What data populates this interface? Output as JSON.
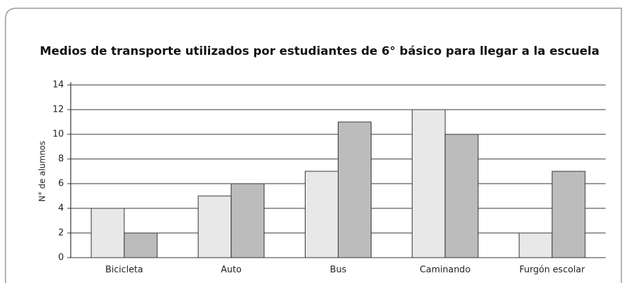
{
  "chart_data": {
    "type": "bar",
    "title": "Medios de transporte utilizados por estudiantes de 6° básico para llegar a la escuela",
    "ylabel": "N° de alumnos",
    "categories": [
      "Bicicleta",
      "Auto",
      "Bus",
      "Caminando",
      "Furgón escolar"
    ],
    "series": [
      {
        "color": "#e8e8e8",
        "values": [
          4,
          5,
          7,
          12,
          2
        ]
      },
      {
        "color": "#bcbcbc",
        "values": [
          2,
          6,
          11,
          10,
          7
        ]
      }
    ],
    "ylim": [
      0,
      14
    ],
    "yticks": [
      0,
      2,
      4,
      6,
      8,
      10,
      12,
      14
    ],
    "grid": true
  }
}
